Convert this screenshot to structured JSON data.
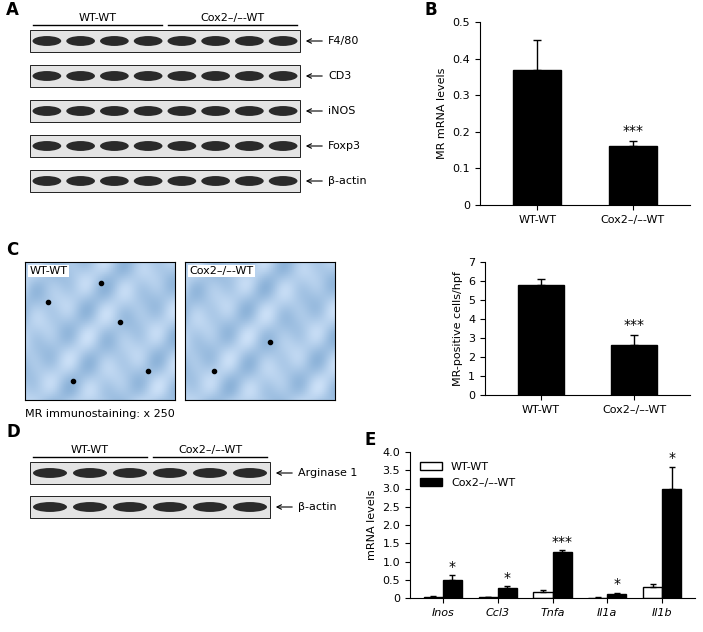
{
  "panels": [
    "A",
    "B",
    "C",
    "D",
    "E"
  ],
  "blot_A": {
    "groups": [
      "WT-WT",
      "Cox2–/–-WT"
    ],
    "bands": [
      "F4/80",
      "CD3",
      "iNOS",
      "Foxp3",
      "β-actin"
    ]
  },
  "blot_D": {
    "groups": [
      "WT-WT",
      "Cox2–/–-WT"
    ],
    "bands": [
      "Arginase 1",
      "β-actin"
    ]
  },
  "images_C": {
    "titles": [
      "WT-WT",
      "Cox2–/–-WT"
    ],
    "caption": "MR immunostaining: x 250"
  },
  "chart_data": [
    {
      "type": "bar",
      "ylabel": "MR mRNA levels",
      "categories": [
        "WT-WT",
        "Cox2–/–-WT"
      ],
      "values": [
        0.37,
        0.16
      ],
      "errors": [
        0.08,
        0.015
      ],
      "significance": [
        null,
        "***"
      ],
      "color": "#000000",
      "ylim": [
        0,
        0.5
      ],
      "yticks": [
        0,
        0.1,
        0.2,
        0.3,
        0.4,
        0.5
      ]
    },
    {
      "type": "bar",
      "ylabel": "MR-positive cells/hpf",
      "categories": [
        "WT-WT",
        "Cox2–/–-WT"
      ],
      "values": [
        5.8,
        2.65
      ],
      "errors": [
        0.3,
        0.5
      ],
      "significance": [
        null,
        "***"
      ],
      "color": "#000000",
      "ylim": [
        0,
        7
      ],
      "yticks": [
        0,
        1,
        2,
        3,
        4,
        5,
        6,
        7
      ]
    },
    {
      "type": "bar",
      "ylabel": "mRNA levels",
      "categories": [
        "Inos",
        "Ccl3",
        "Tnfa",
        "Il1a",
        "Il1b"
      ],
      "series": [
        {
          "name": "WT-WT",
          "color": "#ffffff",
          "values": [
            0.04,
            0.03,
            0.17,
            0.01,
            0.3
          ],
          "errors": [
            0.01,
            0.01,
            0.05,
            0.005,
            0.07
          ]
        },
        {
          "name": "Cox2–/–-WT",
          "color": "#000000",
          "values": [
            0.5,
            0.27,
            1.25,
            0.12,
            3.0
          ],
          "errors": [
            0.12,
            0.05,
            0.06,
            0.03,
            0.6
          ],
          "significance": [
            "*",
            "*",
            "***",
            "*",
            "*"
          ]
        }
      ],
      "ylim": [
        0,
        4
      ],
      "yticks": [
        0,
        0.5,
        1.0,
        1.5,
        2.0,
        2.5,
        3.0,
        3.5,
        4.0
      ],
      "legend": "upper left"
    }
  ]
}
